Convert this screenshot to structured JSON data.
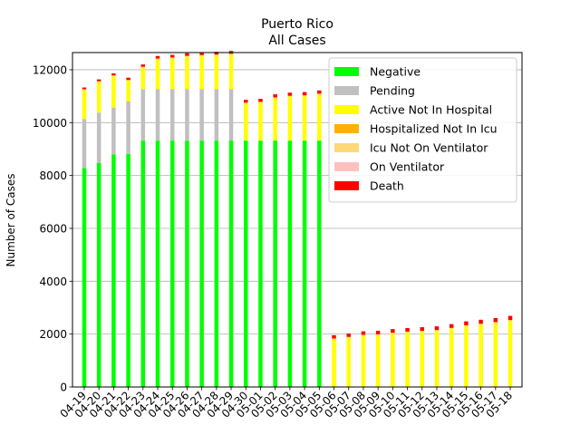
{
  "chart_data": {
    "type": "bar",
    "title": "Puerto Rico",
    "subtitle": "All Cases",
    "xlabel": "",
    "ylabel": "Number of Cases",
    "ylim": [
      0,
      12650
    ],
    "yticks": [
      0,
      2000,
      4000,
      6000,
      8000,
      10000,
      12000
    ],
    "grid": "y",
    "legend_position": "top-right",
    "categories": [
      "04-19",
      "04-20",
      "04-21",
      "04-22",
      "04-23",
      "04-24",
      "04-25",
      "04-26",
      "04-27",
      "04-28",
      "04-29",
      "04-30",
      "05-01",
      "05-02",
      "05-03",
      "05-04",
      "05-05",
      "05-06",
      "05-07",
      "05-08",
      "05-09",
      "05-10",
      "05-11",
      "05-12",
      "05-13",
      "05-14",
      "05-15",
      "05-16",
      "05-17",
      "05-18"
    ],
    "series": [
      {
        "name": "Negative",
        "color": "#00ff00",
        "values": [
          8280,
          8480,
          8800,
          8820,
          9320,
          9320,
          9320,
          9320,
          9320,
          9320,
          9320,
          9320,
          9320,
          9320,
          9320,
          9320,
          9320,
          0,
          0,
          0,
          0,
          0,
          0,
          0,
          0,
          0,
          0,
          0,
          0,
          0
        ]
      },
      {
        "name": "Pending",
        "color": "#c0c0c0",
        "values": [
          1850,
          1900,
          1770,
          1980,
          1950,
          1950,
          1950,
          1950,
          1950,
          1950,
          1950,
          0,
          0,
          0,
          0,
          0,
          0,
          0,
          0,
          0,
          0,
          0,
          0,
          0,
          0,
          0,
          0,
          0,
          0,
          0
        ]
      },
      {
        "name": "Active Not In Hospital",
        "color": "#ffff00",
        "values": [
          1120,
          1170,
          1200,
          800,
          830,
          1140,
          1180,
          1240,
          1270,
          1290,
          1320,
          1420,
          1450,
          1620,
          1680,
          1700,
          1760,
          1820,
          1880,
          1960,
          1980,
          2040,
          2080,
          2110,
          2140,
          2220,
          2320,
          2380,
          2440,
          2520
        ]
      },
      {
        "name": "Hospitalized Not In Icu",
        "color": "#ffb000",
        "values": [
          5,
          5,
          5,
          5,
          5,
          5,
          5,
          5,
          5,
          5,
          5,
          5,
          5,
          5,
          5,
          5,
          5,
          5,
          5,
          5,
          5,
          5,
          5,
          5,
          5,
          5,
          5,
          5,
          5,
          5
        ]
      },
      {
        "name": "Icu Not On Ventilator",
        "color": "#ffd878",
        "values": [
          5,
          5,
          5,
          5,
          5,
          5,
          5,
          5,
          5,
          5,
          5,
          5,
          5,
          5,
          5,
          5,
          5,
          5,
          5,
          5,
          5,
          5,
          5,
          5,
          5,
          5,
          5,
          5,
          5,
          5
        ]
      },
      {
        "name": "On Ventilator",
        "color": "#ffc0c0",
        "values": [
          5,
          5,
          5,
          5,
          5,
          5,
          5,
          5,
          5,
          5,
          5,
          5,
          5,
          5,
          5,
          5,
          5,
          5,
          5,
          5,
          5,
          5,
          5,
          5,
          5,
          5,
          5,
          5,
          5,
          5
        ]
      },
      {
        "name": "Death",
        "color": "#ff0000",
        "values": [
          64,
          69,
          77,
          84,
          86,
          95,
          97,
          99,
          102,
          104,
          107,
          107,
          115,
          115,
          118,
          120,
          122,
          124,
          126,
          129,
          131,
          134,
          135,
          136,
          138,
          142,
          146,
          148,
          153,
          155
        ]
      }
    ]
  }
}
